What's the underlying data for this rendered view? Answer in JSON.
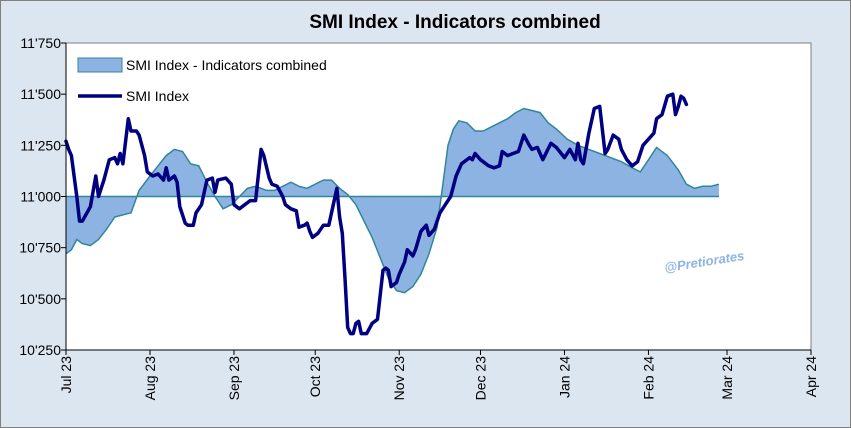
{
  "chart_data": {
    "type": "area",
    "title": "SMI Index - Indicators combined",
    "xlabel": "",
    "ylabel": "",
    "ylim": [
      10250,
      11750
    ],
    "yticks": [
      10250,
      10500,
      10750,
      11000,
      11250,
      11500,
      11750
    ],
    "ytick_labels": [
      "10'250",
      "10'500",
      "10'750",
      "11'000",
      "11'250",
      "11'500",
      "11'750"
    ],
    "xlim": [
      "2023-07-01",
      "2024-04-01"
    ],
    "xtick_labels": [
      "Jul 23",
      "Aug 23",
      "Sep 23",
      "Oct 23",
      "Nov 23",
      "Dec 23",
      "Jan 24",
      "Feb 24",
      "Mar 24",
      "Apr 24"
    ],
    "xtick_dates": [
      "2023-07-01",
      "2023-08-01",
      "2023-09-01",
      "2023-10-01",
      "2023-11-01",
      "2023-12-01",
      "2024-01-01",
      "2024-02-01",
      "2024-03-01",
      "2024-04-01"
    ],
    "baseline": 11000,
    "grid": false,
    "legend_position": "top-left",
    "annotation": "@Pretiorates",
    "colors": {
      "fill": "#8db3e2",
      "fill_edge": "#31859c",
      "line": "#000080",
      "background": "#dce6f1",
      "plot_background": "#ffffff"
    },
    "series": [
      {
        "name": "SMI Index - Indicators combined",
        "kind": "area",
        "points": [
          [
            "2023-07-01",
            10720
          ],
          [
            "2023-07-03",
            10740
          ],
          [
            "2023-07-05",
            10790
          ],
          [
            "2023-07-07",
            10770
          ],
          [
            "2023-07-10",
            10760
          ],
          [
            "2023-07-13",
            10790
          ],
          [
            "2023-07-16",
            10840
          ],
          [
            "2023-07-19",
            10900
          ],
          [
            "2023-07-22",
            10910
          ],
          [
            "2023-07-25",
            10920
          ],
          [
            "2023-07-28",
            11030
          ],
          [
            "2023-08-01",
            11100
          ],
          [
            "2023-08-04",
            11150
          ],
          [
            "2023-08-07",
            11200
          ],
          [
            "2023-08-10",
            11230
          ],
          [
            "2023-08-13",
            11220
          ],
          [
            "2023-08-16",
            11160
          ],
          [
            "2023-08-19",
            11150
          ],
          [
            "2023-08-22",
            11070
          ],
          [
            "2023-08-25",
            11000
          ],
          [
            "2023-08-28",
            10940
          ],
          [
            "2023-08-31",
            10960
          ],
          [
            "2023-09-03",
            11000
          ],
          [
            "2023-09-06",
            11040
          ],
          [
            "2023-09-09",
            11050
          ],
          [
            "2023-09-13",
            11030
          ],
          [
            "2023-09-16",
            11030
          ],
          [
            "2023-09-19",
            11050
          ],
          [
            "2023-09-22",
            11070
          ],
          [
            "2023-09-25",
            11050
          ],
          [
            "2023-09-28",
            11040
          ],
          [
            "2023-10-01",
            11060
          ],
          [
            "2023-10-04",
            11080
          ],
          [
            "2023-10-07",
            11080
          ],
          [
            "2023-10-10",
            11040
          ],
          [
            "2023-10-13",
            11010
          ],
          [
            "2023-10-16",
            10960
          ],
          [
            "2023-10-19",
            10880
          ],
          [
            "2023-10-22",
            10800
          ],
          [
            "2023-10-25",
            10700
          ],
          [
            "2023-10-28",
            10600
          ],
          [
            "2023-10-31",
            10540
          ],
          [
            "2023-11-03",
            10530
          ],
          [
            "2023-11-06",
            10560
          ],
          [
            "2023-11-09",
            10620
          ],
          [
            "2023-11-12",
            10720
          ],
          [
            "2023-11-15",
            10850
          ],
          [
            "2023-11-17",
            11050
          ],
          [
            "2023-11-19",
            11250
          ],
          [
            "2023-11-21",
            11330
          ],
          [
            "2023-11-23",
            11370
          ],
          [
            "2023-11-26",
            11360
          ],
          [
            "2023-11-29",
            11320
          ],
          [
            "2023-12-02",
            11320
          ],
          [
            "2023-12-05",
            11340
          ],
          [
            "2023-12-08",
            11360
          ],
          [
            "2023-12-11",
            11380
          ],
          [
            "2023-12-14",
            11410
          ],
          [
            "2023-12-17",
            11430
          ],
          [
            "2023-12-20",
            11420
          ],
          [
            "2023-12-23",
            11410
          ],
          [
            "2023-12-26",
            11360
          ],
          [
            "2023-12-29",
            11330
          ],
          [
            "2024-01-02",
            11280
          ],
          [
            "2024-01-06",
            11250
          ],
          [
            "2024-01-10",
            11230
          ],
          [
            "2024-01-14",
            11210
          ],
          [
            "2024-01-18",
            11190
          ],
          [
            "2024-01-22",
            11170
          ],
          [
            "2024-01-26",
            11140
          ],
          [
            "2024-01-29",
            11120
          ],
          [
            "2024-02-01",
            11180
          ],
          [
            "2024-02-04",
            11240
          ],
          [
            "2024-02-08",
            11200
          ],
          [
            "2024-02-12",
            11130
          ],
          [
            "2024-02-15",
            11060
          ],
          [
            "2024-02-18",
            11040
          ],
          [
            "2024-02-21",
            11050
          ],
          [
            "2024-02-24",
            11050
          ],
          [
            "2024-02-27",
            11060
          ]
        ]
      },
      {
        "name": "SMI Index",
        "kind": "line",
        "points": [
          [
            "2023-07-01",
            11270
          ],
          [
            "2023-07-02",
            11230
          ],
          [
            "2023-07-03",
            11200
          ],
          [
            "2023-07-05",
            11000
          ],
          [
            "2023-07-06",
            10880
          ],
          [
            "2023-07-07",
            10880
          ],
          [
            "2023-07-10",
            10950
          ],
          [
            "2023-07-12",
            11100
          ],
          [
            "2023-07-13",
            11000
          ],
          [
            "2023-07-15",
            11080
          ],
          [
            "2023-07-17",
            11180
          ],
          [
            "2023-07-19",
            11190
          ],
          [
            "2023-07-20",
            11160
          ],
          [
            "2023-07-21",
            11210
          ],
          [
            "2023-07-22",
            11160
          ],
          [
            "2023-07-24",
            11380
          ],
          [
            "2023-07-25",
            11320
          ],
          [
            "2023-07-27",
            11320
          ],
          [
            "2023-07-28",
            11300
          ],
          [
            "2023-07-30",
            11200
          ],
          [
            "2023-07-31",
            11120
          ],
          [
            "2023-08-02",
            11100
          ],
          [
            "2023-08-04",
            11110
          ],
          [
            "2023-08-06",
            11080
          ],
          [
            "2023-08-07",
            11140
          ],
          [
            "2023-08-08",
            11080
          ],
          [
            "2023-08-10",
            11100
          ],
          [
            "2023-08-11",
            11070
          ],
          [
            "2023-08-12",
            10950
          ],
          [
            "2023-08-14",
            10870
          ],
          [
            "2023-08-15",
            10860
          ],
          [
            "2023-08-17",
            10860
          ],
          [
            "2023-08-18",
            10920
          ],
          [
            "2023-08-20",
            10960
          ],
          [
            "2023-08-22",
            11080
          ],
          [
            "2023-08-24",
            11090
          ],
          [
            "2023-08-25",
            11020
          ],
          [
            "2023-08-26",
            11080
          ],
          [
            "2023-08-29",
            11090
          ],
          [
            "2023-08-31",
            11060
          ],
          [
            "2023-09-01",
            10960
          ],
          [
            "2023-09-03",
            10940
          ],
          [
            "2023-09-05",
            10960
          ],
          [
            "2023-09-07",
            10980
          ],
          [
            "2023-09-09",
            10980
          ],
          [
            "2023-09-11",
            11230
          ],
          [
            "2023-09-12",
            11200
          ],
          [
            "2023-09-14",
            11090
          ],
          [
            "2023-09-15",
            11060
          ],
          [
            "2023-09-17",
            11050
          ],
          [
            "2023-09-19",
            11000
          ],
          [
            "2023-09-20",
            10960
          ],
          [
            "2023-09-22",
            10940
          ],
          [
            "2023-09-24",
            10930
          ],
          [
            "2023-09-25",
            10850
          ],
          [
            "2023-09-27",
            10860
          ],
          [
            "2023-09-28",
            10870
          ],
          [
            "2023-09-29",
            10830
          ],
          [
            "2023-09-30",
            10800
          ],
          [
            "2023-10-02",
            10820
          ],
          [
            "2023-10-04",
            10860
          ],
          [
            "2023-10-06",
            10860
          ],
          [
            "2023-10-07",
            10920
          ],
          [
            "2023-10-09",
            11040
          ],
          [
            "2023-10-10",
            10900
          ],
          [
            "2023-10-11",
            10820
          ],
          [
            "2023-10-12",
            10600
          ],
          [
            "2023-10-13",
            10360
          ],
          [
            "2023-10-14",
            10330
          ],
          [
            "2023-10-15",
            10330
          ],
          [
            "2023-10-16",
            10380
          ],
          [
            "2023-10-17",
            10390
          ],
          [
            "2023-10-18",
            10330
          ],
          [
            "2023-10-20",
            10330
          ],
          [
            "2023-10-22",
            10380
          ],
          [
            "2023-10-24",
            10400
          ],
          [
            "2023-10-26",
            10640
          ],
          [
            "2023-10-27",
            10650
          ],
          [
            "2023-10-28",
            10640
          ],
          [
            "2023-10-29",
            10560
          ],
          [
            "2023-10-31",
            10580
          ],
          [
            "2023-11-01",
            10620
          ],
          [
            "2023-11-03",
            10680
          ],
          [
            "2023-11-04",
            10740
          ],
          [
            "2023-11-06",
            10710
          ],
          [
            "2023-11-07",
            10740
          ],
          [
            "2023-11-09",
            10830
          ],
          [
            "2023-11-11",
            10860
          ],
          [
            "2023-11-12",
            10810
          ],
          [
            "2023-11-14",
            10840
          ],
          [
            "2023-11-16",
            10920
          ],
          [
            "2023-11-18",
            10960
          ],
          [
            "2023-11-20",
            11000
          ],
          [
            "2023-11-22",
            11100
          ],
          [
            "2023-11-24",
            11160
          ],
          [
            "2023-11-27",
            11190
          ],
          [
            "2023-11-28",
            11180
          ],
          [
            "2023-11-29",
            11210
          ],
          [
            "2023-12-01",
            11180
          ],
          [
            "2023-12-04",
            11150
          ],
          [
            "2023-12-06",
            11140
          ],
          [
            "2023-12-08",
            11150
          ],
          [
            "2023-12-09",
            11220
          ],
          [
            "2023-12-11",
            11200
          ],
          [
            "2023-12-13",
            11210
          ],
          [
            "2023-12-15",
            11220
          ],
          [
            "2023-12-17",
            11300
          ],
          [
            "2023-12-19",
            11250
          ],
          [
            "2023-12-20",
            11230
          ],
          [
            "2023-12-22",
            11240
          ],
          [
            "2023-12-24",
            11180
          ],
          [
            "2023-12-27",
            11260
          ],
          [
            "2023-12-29",
            11240
          ],
          [
            "2024-01-01",
            11190
          ],
          [
            "2024-01-03",
            11230
          ],
          [
            "2024-01-05",
            11180
          ],
          [
            "2024-01-06",
            11260
          ],
          [
            "2024-01-07",
            11180
          ],
          [
            "2024-01-08",
            11160
          ],
          [
            "2024-01-10",
            11310
          ],
          [
            "2024-01-12",
            11430
          ],
          [
            "2024-01-14",
            11440
          ],
          [
            "2024-01-16",
            11210
          ],
          [
            "2024-01-17",
            11230
          ],
          [
            "2024-01-19",
            11300
          ],
          [
            "2024-01-21",
            11280
          ],
          [
            "2024-01-22",
            11230
          ],
          [
            "2024-01-24",
            11180
          ],
          [
            "2024-01-26",
            11150
          ],
          [
            "2024-01-28",
            11170
          ],
          [
            "2024-01-30",
            11250
          ],
          [
            "2024-02-01",
            11280
          ],
          [
            "2024-02-03",
            11310
          ],
          [
            "2024-02-04",
            11380
          ],
          [
            "2024-02-06",
            11400
          ],
          [
            "2024-02-08",
            11490
          ],
          [
            "2024-02-10",
            11500
          ],
          [
            "2024-02-11",
            11400
          ],
          [
            "2024-02-12",
            11440
          ],
          [
            "2024-02-13",
            11490
          ],
          [
            "2024-02-14",
            11480
          ],
          [
            "2024-02-15",
            11450
          ]
        ]
      }
    ]
  }
}
